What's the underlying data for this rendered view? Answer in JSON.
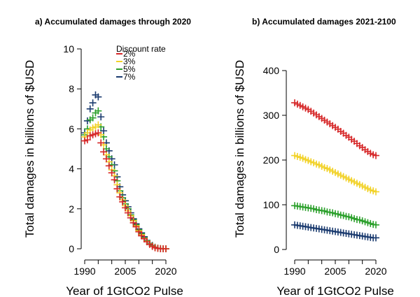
{
  "chart_data": [
    {
      "panel": "a",
      "type": "scatter",
      "marker": "plus",
      "title": "a)  Accumulated damages through 2020",
      "xlabel": "Year of 1GtCO2 Pulse",
      "ylabel": "Total damages in billions of $USD",
      "xlim": [
        1990,
        2020
      ],
      "ylim": [
        0,
        10
      ],
      "xticks": [
        "1990",
        "2005",
        "2020"
      ],
      "xticks_minor": [
        1995,
        2000,
        2010,
        2015
      ],
      "yticks": [
        "0",
        "2",
        "4",
        "6",
        "8",
        "10"
      ],
      "grid": false,
      "legend": {
        "title": "Discount rate",
        "placement": "top-center",
        "entries": [
          "2%",
          "3%",
          "5%",
          "7%"
        ]
      },
      "x": [
        1990,
        1991,
        1992,
        1993,
        1994,
        1995,
        1996,
        1997,
        1998,
        1999,
        2000,
        2001,
        2002,
        2003,
        2004,
        2005,
        2006,
        2007,
        2008,
        2009,
        2010,
        2011,
        2012,
        2013,
        2014,
        2015,
        2016,
        2017,
        2018,
        2019,
        2020
      ],
      "series": [
        {
          "name": "7%",
          "color": "#1b3b6f",
          "values": [
            5.8,
            6.4,
            7.0,
            7.3,
            7.7,
            7.6,
            6.6,
            5.9,
            5.3,
            4.9,
            4.5,
            4.2,
            3.6,
            3.1,
            2.7,
            2.4,
            2.1,
            1.8,
            1.5,
            1.25,
            1.0,
            0.8,
            0.6,
            0.42,
            0.27,
            0.17,
            0.08,
            0.03,
            0.01,
            0.0,
            0.0
          ]
        },
        {
          "name": "5%",
          "color": "#2ca02c",
          "values": [
            5.7,
            6.0,
            6.45,
            6.55,
            6.8,
            6.9,
            6.1,
            5.6,
            5.0,
            4.6,
            4.2,
            3.9,
            3.4,
            2.9,
            2.55,
            2.25,
            2.0,
            1.7,
            1.45,
            1.2,
            0.95,
            0.75,
            0.55,
            0.4,
            0.25,
            0.15,
            0.07,
            0.03,
            0.01,
            0.0,
            0.0
          ]
        },
        {
          "name": "3%",
          "color": "#f2d229",
          "values": [
            5.6,
            5.8,
            5.95,
            6.05,
            6.1,
            6.2,
            5.7,
            5.2,
            4.7,
            4.35,
            3.95,
            3.65,
            3.2,
            2.8,
            2.45,
            2.15,
            1.9,
            1.65,
            1.4,
            1.15,
            0.9,
            0.7,
            0.52,
            0.37,
            0.23,
            0.13,
            0.06,
            0.02,
            0.01,
            0.0,
            0.0
          ]
        },
        {
          "name": "2%",
          "color": "#d62728",
          "values": [
            5.4,
            5.45,
            5.65,
            5.7,
            5.75,
            5.8,
            5.3,
            4.85,
            4.5,
            4.15,
            3.8,
            3.45,
            3.0,
            2.6,
            2.35,
            2.05,
            1.8,
            1.55,
            1.3,
            1.1,
            0.85,
            0.65,
            0.5,
            0.35,
            0.22,
            0.12,
            0.05,
            0.02,
            0.0,
            0.0,
            0.0
          ]
        }
      ]
    },
    {
      "panel": "b",
      "type": "scatter",
      "marker": "plus",
      "title": "b)  Accumulated damages 2021-2100",
      "xlabel": "Year of 1GtCO2 Pulse",
      "ylabel": "Total damages in billions of $USD",
      "xlim": [
        1990,
        2020
      ],
      "ylim": [
        0,
        400
      ],
      "xticks": [
        "1990",
        "2005",
        "2020"
      ],
      "xticks_minor": [
        1995,
        2000,
        2010,
        2015
      ],
      "yticks": [
        "0",
        "100",
        "200",
        "300",
        "400"
      ],
      "grid": false,
      "x": [
        1990,
        1991,
        1992,
        1993,
        1994,
        1995,
        1996,
        1997,
        1998,
        1999,
        2000,
        2001,
        2002,
        2003,
        2004,
        2005,
        2006,
        2007,
        2008,
        2009,
        2010,
        2011,
        2012,
        2013,
        2014,
        2015,
        2016,
        2017,
        2018,
        2019,
        2020
      ],
      "series": [
        {
          "name": "2%",
          "color": "#d62728",
          "values": [
            328,
            325,
            322,
            319,
            316,
            313,
            309,
            305,
            301,
            297,
            293,
            289,
            285,
            281,
            277,
            273,
            269,
            264,
            260,
            255,
            251,
            246,
            242,
            237,
            232,
            228,
            223,
            219,
            215,
            212,
            210
          ]
        },
        {
          "name": "3%",
          "color": "#f2d229",
          "values": [
            210,
            208,
            206,
            204,
            201,
            199,
            196,
            194,
            191,
            189,
            186,
            183,
            181,
            178,
            175,
            172,
            169,
            166,
            163,
            160,
            157,
            154,
            151,
            148,
            145,
            142,
            139,
            136,
            133,
            131,
            129
          ]
        },
        {
          "name": "5%",
          "color": "#2ca02c",
          "values": [
            98,
            97,
            96,
            95,
            94,
            93,
            92,
            91,
            89,
            88,
            87,
            86,
            84,
            83,
            82,
            80,
            79,
            77,
            76,
            74,
            73,
            71,
            69,
            67,
            66,
            64,
            62,
            60,
            58,
            56,
            55
          ]
        },
        {
          "name": "7%",
          "color": "#1b3b6f",
          "values": [
            55,
            54,
            53,
            52,
            51,
            50,
            49,
            48,
            47,
            46,
            45,
            44,
            43,
            42,
            41,
            40,
            39,
            38,
            37,
            36,
            35,
            34,
            33,
            32,
            31,
            30,
            29,
            28,
            27,
            26,
            26
          ]
        }
      ]
    }
  ]
}
